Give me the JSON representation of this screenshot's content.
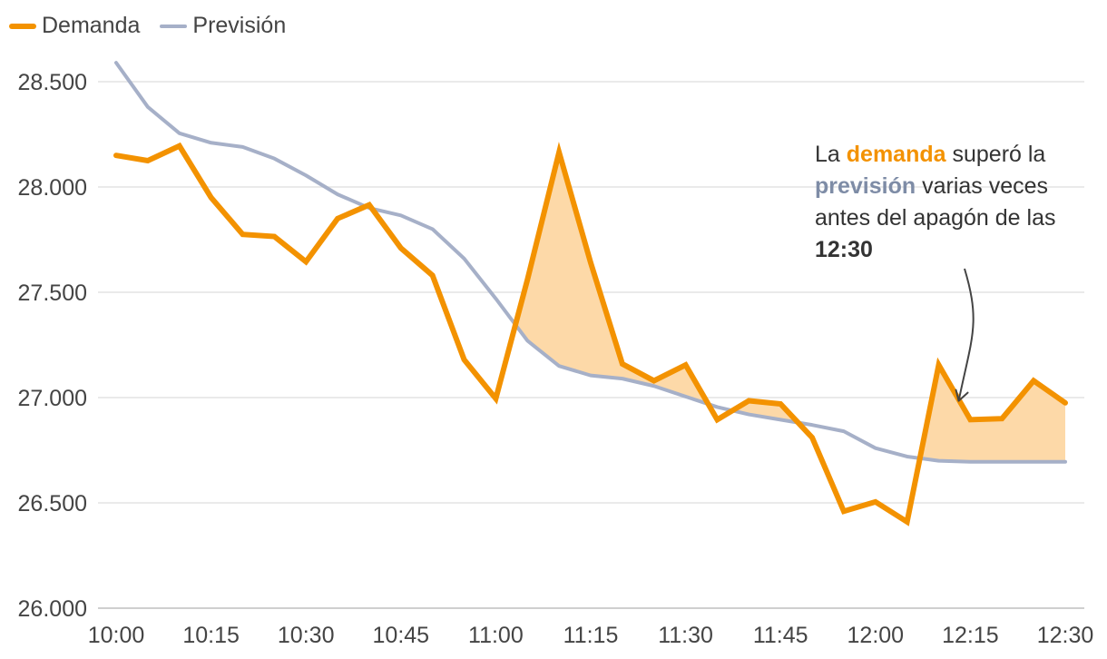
{
  "chart_data": {
    "type": "line",
    "title": "",
    "xlabel": "",
    "ylabel": "",
    "ylim": [
      26000,
      28600
    ],
    "yticks": [
      26000,
      26500,
      27000,
      27500,
      28000,
      28500
    ],
    "ytick_labels": [
      "26.000",
      "26.500",
      "27.000",
      "27.500",
      "28.000",
      "28.500"
    ],
    "x": [
      "10:00",
      "10:05",
      "10:10",
      "10:15",
      "10:20",
      "10:25",
      "10:30",
      "10:35",
      "10:40",
      "10:45",
      "10:50",
      "10:55",
      "11:00",
      "11:05",
      "11:10",
      "11:15",
      "11:20",
      "11:25",
      "11:30",
      "11:35",
      "11:40",
      "11:45",
      "11:50",
      "11:55",
      "12:00",
      "12:05",
      "12:10",
      "12:15",
      "12:20",
      "12:25",
      "12:30"
    ],
    "xticks": [
      "10:00",
      "10:15",
      "10:30",
      "10:45",
      "11:00",
      "11:15",
      "11:30",
      "11:45",
      "12:00",
      "12:15",
      "12:30"
    ],
    "grid": true,
    "legend_position": "top-left",
    "series": [
      {
        "name": "Demanda",
        "color": "#f39200",
        "values": [
          28150,
          28125,
          28195,
          27950,
          27775,
          27765,
          27645,
          27850,
          27915,
          27710,
          27580,
          27180,
          26995,
          27560,
          28165,
          27640,
          27160,
          27080,
          27155,
          26895,
          26985,
          26970,
          26810,
          26460,
          26505,
          26410,
          27155,
          26895,
          26900,
          27080,
          26975
        ]
      },
      {
        "name": "Previsión",
        "color": "#a6b0c8",
        "values": [
          28590,
          28380,
          28255,
          28210,
          28190,
          28135,
          28055,
          27965,
          27900,
          27865,
          27800,
          27660,
          27470,
          27270,
          27150,
          27105,
          27090,
          27055,
          27005,
          26955,
          26920,
          26895,
          26870,
          26840,
          26760,
          26720,
          26700,
          26695,
          26695,
          26695,
          26695
        ]
      }
    ],
    "fill_color": "#fdd9a8",
    "annotation": {
      "parts": [
        {
          "text": "La ",
          "style": "normal"
        },
        {
          "text": "demanda",
          "style": "demanda"
        },
        {
          "text": " superó la ",
          "style": "normal"
        },
        {
          "text": "previsión",
          "style": "prevision"
        },
        {
          "text": " varias veces antes del apagón de las ",
          "style": "normal"
        },
        {
          "text": "12:30",
          "style": "bold"
        }
      ],
      "arrow_target_x": "12:10",
      "arrow_target_value": 26950
    }
  },
  "legend": {
    "demanda_label": "Demanda",
    "prevision_label": "Previsión"
  }
}
